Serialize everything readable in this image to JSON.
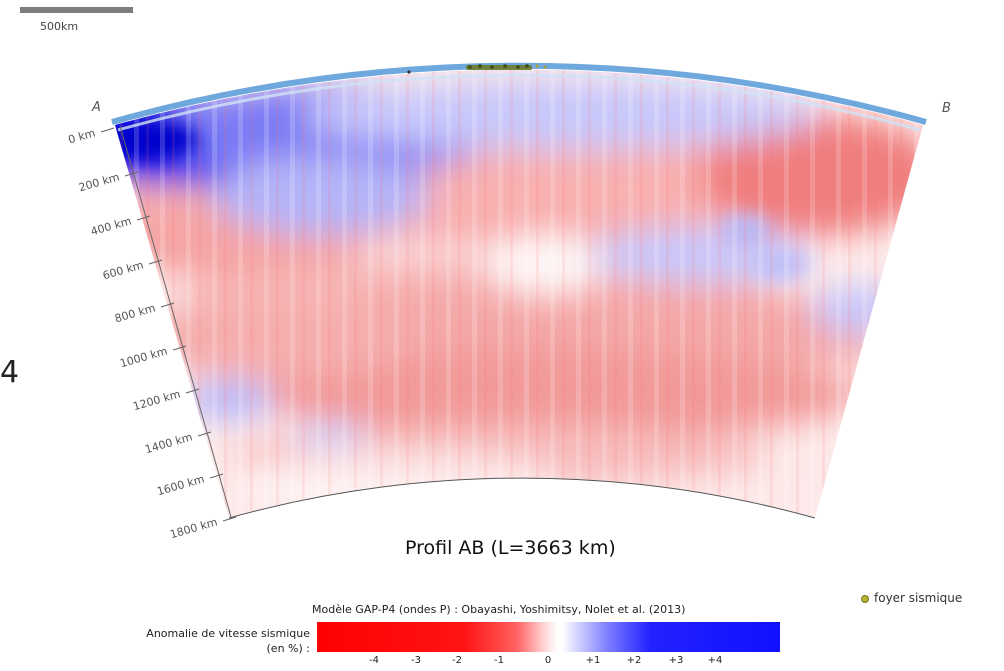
{
  "scale": {
    "label": "500km"
  },
  "side_number": "4",
  "profile": {
    "title": "Profil AB (L=3663 km)",
    "end_a": "A",
    "end_b": "B",
    "depth_labels": [
      "0 km",
      "200 km",
      "400 km",
      "600 km",
      "800 km",
      "1000 km",
      "1200 km",
      "1400 km",
      "1600 km",
      "1800 km"
    ]
  },
  "legend": {
    "foyer": "foyer sismique",
    "model": "Modèle GAP-P4 (ondes P) : Obayashi, Yoshimitsy, Nolet et al. (2013)",
    "anomaly_label": "Anomalie de vitesse sismique (en %) :",
    "ticks": [
      "-4",
      "-3",
      "-2",
      "-1",
      "0",
      "+1",
      "+2",
      "+3",
      "+4"
    ],
    "colors": {
      "slow": "#ff0000",
      "neutral": "#ffffff",
      "fast": "#0000ff",
      "surface": "#6fa8dc",
      "focus": "#b8b030"
    }
  }
}
